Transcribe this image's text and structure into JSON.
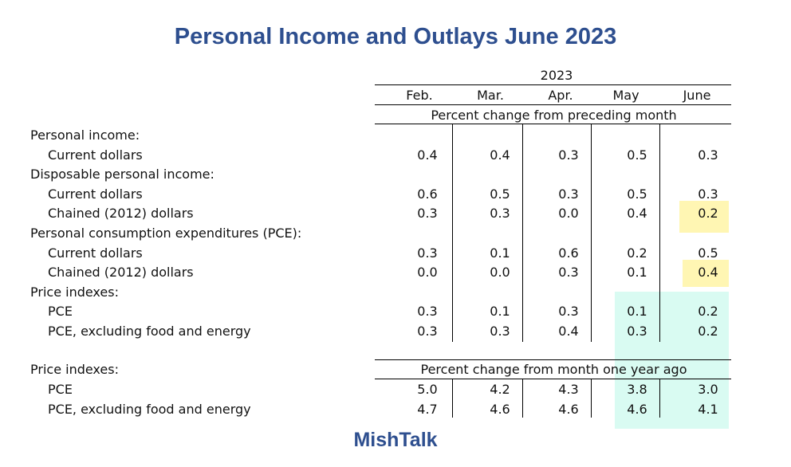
{
  "title": "Personal Income and Outlays June 2023",
  "footer": "MishTalk",
  "year": "2023",
  "months": [
    "Feb.",
    "Mar.",
    "Apr.",
    "May",
    "June"
  ],
  "section1_header": "Percent change from preceding month",
  "section2_header": "Percent change from month one year ago",
  "rows": [
    {
      "label": "Personal income:",
      "indent": false,
      "values": null
    },
    {
      "label": "Current dollars",
      "indent": true,
      "values": [
        "0.4",
        "0.4",
        "0.3",
        "0.5",
        "0.3"
      ]
    },
    {
      "label": "Disposable personal income:",
      "indent": false,
      "values": null
    },
    {
      "label": "Current dollars",
      "indent": true,
      "values": [
        "0.6",
        "0.5",
        "0.3",
        "0.5",
        "0.3"
      ]
    },
    {
      "label": "Chained (2012) dollars",
      "indent": true,
      "values": [
        "0.3",
        "0.3",
        "0.0",
        "0.4",
        "0.2"
      ]
    },
    {
      "label": "Personal consumption expenditures (PCE):",
      "indent": false,
      "values": null
    },
    {
      "label": "Current dollars",
      "indent": true,
      "values": [
        "0.3",
        "0.1",
        "0.6",
        "0.2",
        "0.5"
      ]
    },
    {
      "label": "Chained (2012) dollars",
      "indent": true,
      "values": [
        "0.0",
        "0.0",
        "0.3",
        "0.1",
        "0.4"
      ]
    },
    {
      "label": "Price indexes:",
      "indent": false,
      "values": null
    },
    {
      "label": "PCE",
      "indent": true,
      "values": [
        "0.3",
        "0.1",
        "0.3",
        "0.1",
        "0.2"
      ]
    },
    {
      "label": "PCE, excluding food and energy",
      "indent": true,
      "values": [
        "0.3",
        "0.3",
        "0.4",
        "0.3",
        "0.2"
      ]
    }
  ],
  "rows2_label": "Price indexes:",
  "rows2": [
    {
      "label": "PCE",
      "values": [
        "5.0",
        "4.2",
        "4.3",
        "3.8",
        "3.0"
      ]
    },
    {
      "label": "PCE, excluding food and energy",
      "values": [
        "4.7",
        "4.6",
        "4.6",
        "4.6",
        "4.1"
      ]
    }
  ],
  "highlight_colors": {
    "yellow": "#fff6b3",
    "cyan": "#d9fbf2"
  }
}
